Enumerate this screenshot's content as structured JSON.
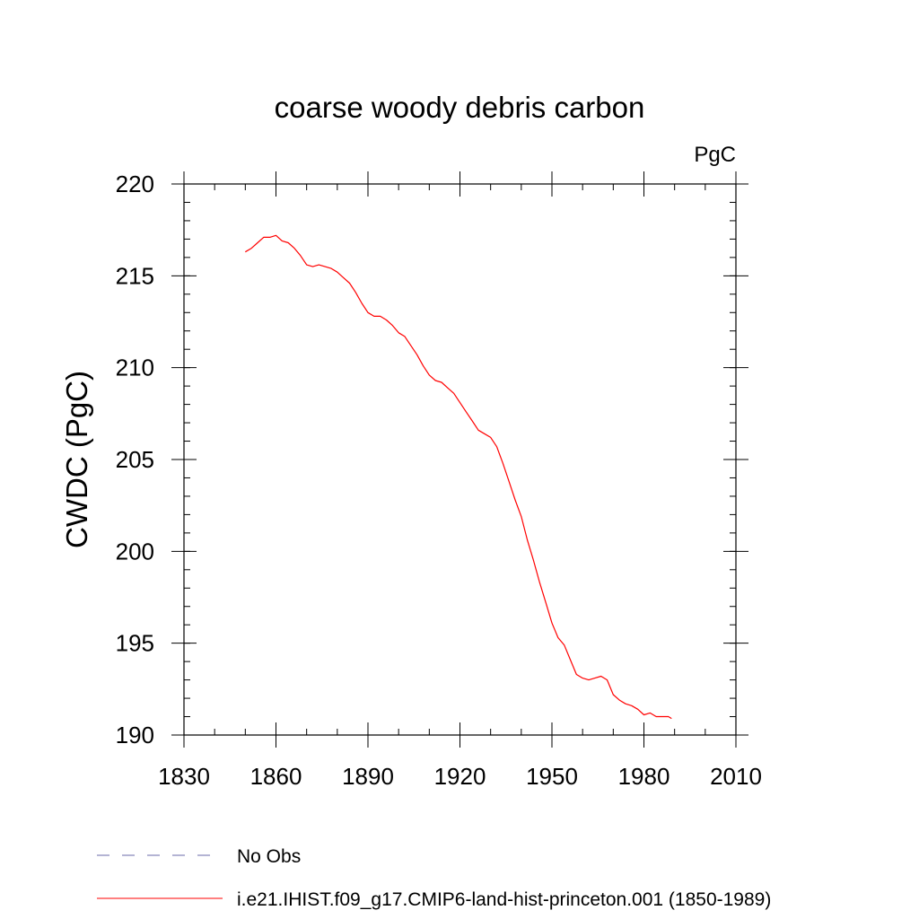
{
  "chart_data": {
    "type": "line",
    "title": "coarse woody debris carbon",
    "units_label": "PgC",
    "ylabel": "CWDC  (PgC)",
    "xlabel": "",
    "xlim": [
      1830,
      2010
    ],
    "ylim": [
      190,
      220
    ],
    "x_ticks": [
      1830,
      1860,
      1890,
      1920,
      1950,
      1980,
      2010
    ],
    "y_ticks": [
      190,
      195,
      200,
      205,
      210,
      215,
      220
    ],
    "grid": false,
    "legend_position": "bottom",
    "series": [
      {
        "name": "i.e21.IHIST.f09_g17.CMIP6-land-hist-princeton.001 (1850-1989)",
        "color": "#ff0000",
        "style": "solid",
        "x": [
          1850,
          1852,
          1854,
          1856,
          1858,
          1860,
          1862,
          1864,
          1866,
          1868,
          1870,
          1872,
          1874,
          1876,
          1878,
          1880,
          1882,
          1884,
          1886,
          1888,
          1890,
          1892,
          1894,
          1896,
          1898,
          1900,
          1902,
          1904,
          1906,
          1908,
          1910,
          1912,
          1914,
          1916,
          1918,
          1920,
          1922,
          1924,
          1926,
          1928,
          1930,
          1932,
          1934,
          1936,
          1938,
          1940,
          1942,
          1944,
          1946,
          1948,
          1950,
          1952,
          1954,
          1956,
          1958,
          1960,
          1962,
          1964,
          1966,
          1968,
          1970,
          1972,
          1974,
          1976,
          1978,
          1980,
          1982,
          1984,
          1986,
          1988,
          1989
        ],
        "y": [
          216.3,
          216.5,
          216.8,
          217.1,
          217.1,
          217.2,
          216.9,
          216.8,
          216.5,
          216.1,
          215.6,
          215.5,
          215.6,
          215.5,
          215.4,
          215.2,
          214.9,
          214.6,
          214.1,
          213.5,
          213.0,
          212.8,
          212.8,
          212.6,
          212.3,
          211.9,
          211.7,
          211.2,
          210.7,
          210.1,
          209.6,
          209.3,
          209.2,
          208.9,
          208.6,
          208.1,
          207.6,
          207.1,
          206.6,
          206.4,
          206.2,
          205.7,
          204.8,
          203.8,
          202.8,
          201.9,
          200.6,
          199.5,
          198.3,
          197.2,
          196.1,
          195.3,
          194.9,
          194.1,
          193.3,
          193.1,
          193.0,
          193.1,
          193.2,
          193.0,
          192.2,
          191.9,
          191.7,
          191.6,
          191.4,
          191.1,
          191.2,
          191.0,
          191.0,
          191.0,
          190.9
        ]
      }
    ],
    "reference_series": {
      "name": "No Obs",
      "color": "#6a6aa8",
      "style": "dashed"
    }
  }
}
